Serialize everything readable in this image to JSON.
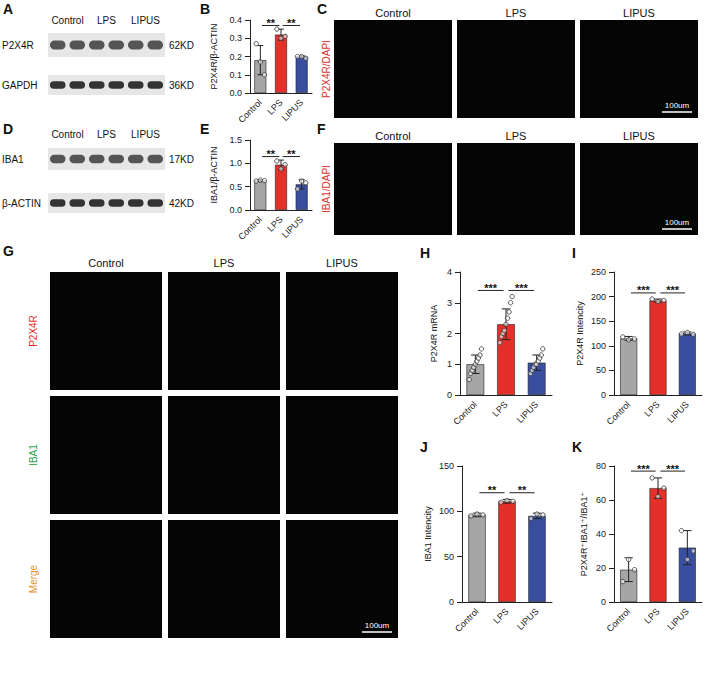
{
  "figure": {
    "blots": [
      {
        "letter": "A",
        "lanes": [
          "Control",
          "LPS",
          "LIPUS"
        ],
        "rows": [
          {
            "label": "P2X4R",
            "size": "62KD"
          },
          {
            "label": "GAPDH",
            "size": "36KD"
          }
        ]
      },
      {
        "letter": "D",
        "lanes": [
          "Control",
          "LPS",
          "LIPUS"
        ],
        "rows": [
          {
            "label": "IBA1",
            "size": "17KD"
          },
          {
            "label": "β-ACTIN",
            "size": "42KD"
          }
        ]
      }
    ],
    "images": [
      {
        "letter": "C",
        "columns": [
          "Control",
          "LPS",
          "LIPUS"
        ],
        "rows": [
          {
            "label": "P2X4R/DAPI",
            "color": "#d8342c"
          }
        ],
        "scale_bar": "100um"
      },
      {
        "letter": "F",
        "columns": [
          "Control",
          "LPS",
          "LIPUS"
        ],
        "rows": [
          {
            "label": "IBA1/DAPI",
            "color": "#d8342c"
          }
        ],
        "scale_bar": "100um"
      },
      {
        "letter": "G",
        "columns": [
          "Control",
          "LPS",
          "LIPUS"
        ],
        "rows": [
          {
            "label": "P2X4R",
            "color": "#e0302a"
          },
          {
            "label": "IBA1",
            "color": "#2fa84f"
          },
          {
            "label": "Merge",
            "color": "#e8902a"
          }
        ],
        "scale_bar": "100um"
      }
    ]
  },
  "chart_data": [
    {
      "letter": "B",
      "type": "bar",
      "ylabel": "P2X4R/β-ACTIN",
      "categories": [
        "Control",
        "LPS",
        "LIPUS"
      ],
      "values": [
        0.18,
        0.32,
        0.2
      ],
      "errors": [
        0.08,
        0.03,
        0.005
      ],
      "points": [
        [
          0.27,
          0.17,
          0.1
        ],
        [
          0.35,
          0.3,
          0.31
        ],
        [
          0.2,
          0.2,
          0.19
        ]
      ],
      "colors": [
        "#a6a6a6",
        "#e5302a",
        "#3a4ea0"
      ],
      "ylim": [
        0,
        0.4
      ],
      "yticks": [
        {
          "value": 0,
          "label": "0.0"
        },
        {
          "value": 0.1,
          "label": "0.1"
        },
        {
          "value": 0.2,
          "label": "0.2"
        },
        {
          "value": 0.3,
          "label": "0.3"
        },
        {
          "value": 0.4,
          "label": "0.4"
        }
      ],
      "grid": false,
      "significance": [
        {
          "from": "Control",
          "to": "LPS",
          "label": "**"
        },
        {
          "from": "LPS",
          "to": "LIPUS",
          "label": "**"
        }
      ]
    },
    {
      "letter": "E",
      "type": "bar",
      "ylabel": "IBA1/β-ACTIN",
      "categories": [
        "Control",
        "LPS",
        "LIPUS"
      ],
      "values": [
        0.63,
        0.97,
        0.55
      ],
      "errors": [
        0.02,
        0.1,
        0.1
      ],
      "points": [
        [
          0.62,
          0.64,
          0.63
        ],
        [
          1.05,
          0.88,
          0.97
        ],
        [
          0.45,
          0.62,
          0.58
        ]
      ],
      "colors": [
        "#a6a6a6",
        "#e5302a",
        "#3a4ea0"
      ],
      "ylim": [
        0,
        1.5
      ],
      "yticks": [
        {
          "value": 0,
          "label": "0.0"
        },
        {
          "value": 0.5,
          "label": "0.5"
        },
        {
          "value": 1,
          "label": "1.0"
        },
        {
          "value": 1.5,
          "label": "1.5"
        }
      ],
      "grid": false,
      "significance": [
        {
          "from": "Control",
          "to": "LPS",
          "label": "**"
        },
        {
          "from": "LPS",
          "to": "LIPUS",
          "label": "**"
        }
      ]
    },
    {
      "letter": "H",
      "type": "bar",
      "ylabel": "P2X4R mRNA",
      "categories": [
        "Control",
        "LPS",
        "LIPUS"
      ],
      "values": [
        1.0,
        2.3,
        1.05
      ],
      "errors": [
        0.3,
        0.5,
        0.25
      ],
      "points": [
        [
          0.5,
          0.7,
          0.8,
          0.9,
          1.0,
          1.1,
          1.2,
          1.3,
          1.5
        ],
        [
          1.7,
          1.9,
          2.0,
          2.1,
          2.3,
          2.5,
          2.7,
          3.0,
          3.2
        ],
        [
          0.7,
          0.8,
          0.9,
          1.0,
          1.0,
          1.1,
          1.2,
          1.3,
          1.5
        ]
      ],
      "colors": [
        "#a6a6a6",
        "#e5302a",
        "#3a4ea0"
      ],
      "ylim": [
        0,
        4
      ],
      "yticks": [
        0,
        1,
        2,
        3,
        4
      ],
      "grid": false,
      "significance": [
        {
          "from": "Control",
          "to": "LPS",
          "label": "***"
        },
        {
          "from": "LPS",
          "to": "LIPUS",
          "label": "***"
        }
      ]
    },
    {
      "letter": "I",
      "type": "bar",
      "ylabel": "P2X4R Intencity",
      "categories": [
        "Control",
        "LPS",
        "LIPUS"
      ],
      "values": [
        115,
        192,
        125
      ],
      "errors": [
        4,
        3,
        3
      ],
      "points": [
        [
          118,
          112,
          114
        ],
        [
          195,
          190,
          192
        ],
        [
          124,
          127,
          123
        ]
      ],
      "colors": [
        "#a6a6a6",
        "#e5302a",
        "#3a4ea0"
      ],
      "ylim": [
        0,
        250
      ],
      "yticks": [
        0,
        50,
        100,
        150,
        200,
        250
      ],
      "grid": false,
      "significance": [
        {
          "from": "Control",
          "to": "LPS",
          "label": "***"
        },
        {
          "from": "LPS",
          "to": "LIPUS",
          "label": "***"
        }
      ]
    },
    {
      "letter": "J",
      "type": "bar",
      "ylabel": "IBA1 Intencity",
      "categories": [
        "Control",
        "LPS",
        "LIPUS"
      ],
      "values": [
        96,
        111,
        95
      ],
      "errors": [
        2,
        2,
        3
      ],
      "points": [
        [
          95,
          97,
          96
        ],
        [
          110,
          112,
          111
        ],
        [
          92,
          97,
          96
        ]
      ],
      "colors": [
        "#a6a6a6",
        "#e5302a",
        "#3a4ea0"
      ],
      "ylim": [
        0,
        150
      ],
      "yticks": [
        0,
        50,
        100,
        150
      ],
      "grid": false,
      "significance": [
        {
          "from": "Control",
          "to": "LPS",
          "label": "**"
        },
        {
          "from": "LPS",
          "to": "LIPUS",
          "label": "**"
        }
      ]
    },
    {
      "letter": "K",
      "type": "bar",
      "ylabel": "P2X4R⁺IBA1⁺/IBA1⁺",
      "categories": [
        "Control",
        "LPS",
        "LIPUS"
      ],
      "values": [
        19,
        67,
        32
      ],
      "errors": [
        7,
        6,
        10
      ],
      "points": [
        [
          12,
          25,
          19
        ],
        [
          73,
          62,
          67
        ],
        [
          42,
          25,
          30
        ]
      ],
      "colors": [
        "#a6a6a6",
        "#e5302a",
        "#3a4ea0"
      ],
      "ylim": [
        0,
        80
      ],
      "yticks": [
        0,
        20,
        40,
        60,
        80
      ],
      "grid": false,
      "significance": [
        {
          "from": "Control",
          "to": "LPS",
          "label": "***"
        },
        {
          "from": "LPS",
          "to": "LIPUS",
          "label": "***"
        }
      ]
    }
  ]
}
